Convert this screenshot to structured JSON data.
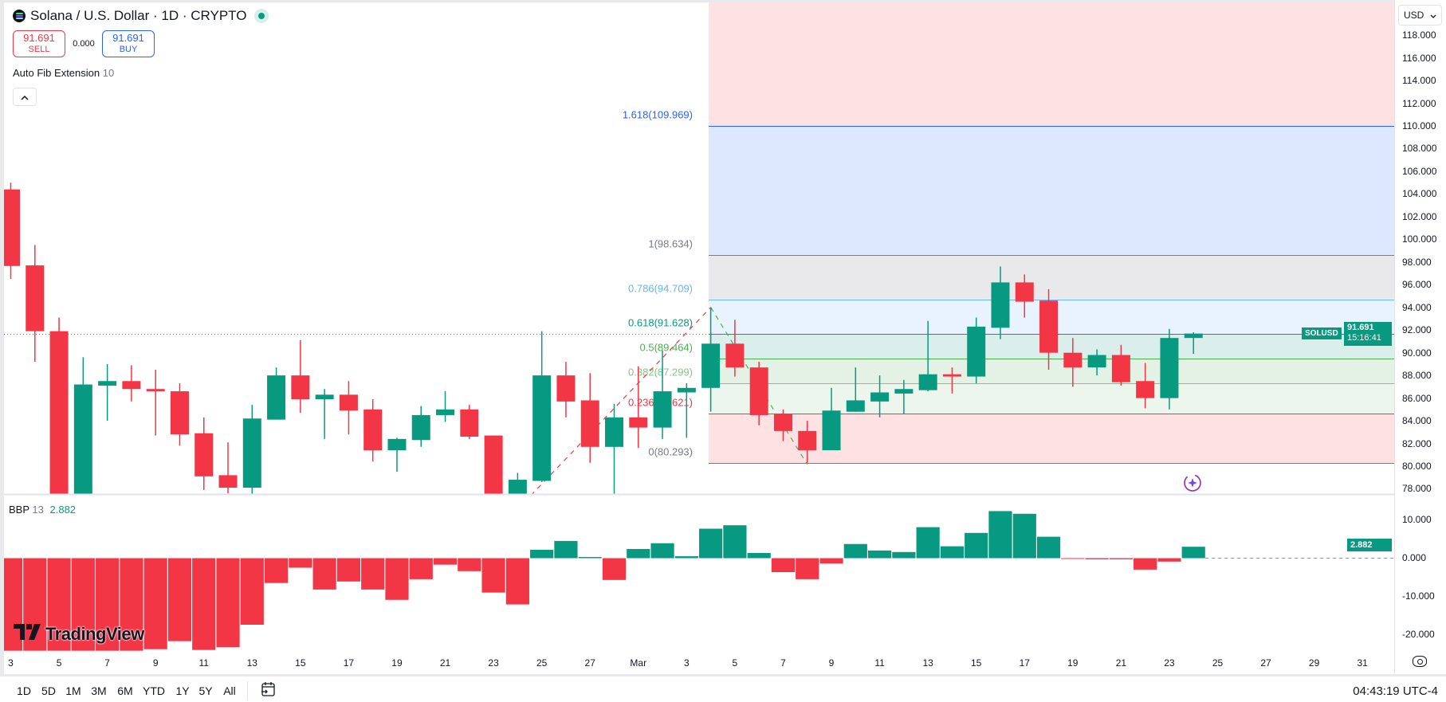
{
  "header": {
    "symbol_title": "Solana / U.S. Dollar · 1D · CRYPTO",
    "sell_price": "91.691",
    "sell_label": "SELL",
    "spread": "0.000",
    "buy_price": "91.691",
    "buy_label": "BUY",
    "indicator_name": "Auto Fib Extension",
    "indicator_param": "10",
    "collapse_icon": "^"
  },
  "currency_selector": {
    "label": "USD",
    "icon": "chevron-down-icon"
  },
  "price_tag": {
    "symbol": "SOLUSD",
    "price": "91.691",
    "countdown": "15:16:41"
  },
  "bbp": {
    "name": "BBP",
    "param": "13",
    "value": "2.882"
  },
  "price_axis": {
    "ticks": [
      "118.000",
      "116.000",
      "114.000",
      "112.000",
      "110.000",
      "108.000",
      "106.000",
      "104.000",
      "102.000",
      "100.000",
      "98.000",
      "96.000",
      "94.000",
      "92.000",
      "90.000",
      "88.000",
      "86.000",
      "84.000",
      "82.000",
      "80.000",
      "78.000"
    ]
  },
  "bbp_axis": {
    "ticks": [
      "10.000",
      "0.000",
      "-10.000",
      "-20.000"
    ]
  },
  "time_axis": {
    "labels": [
      {
        "label": "3",
        "date": "Feb 3"
      },
      {
        "label": "5",
        "date": "Feb 5"
      },
      {
        "label": "7",
        "date": "Feb 7"
      },
      {
        "label": "9",
        "date": "Feb 9"
      },
      {
        "label": "11",
        "date": "Feb 11"
      },
      {
        "label": "13",
        "date": "Feb 13"
      },
      {
        "label": "15",
        "date": "Feb 15"
      },
      {
        "label": "17",
        "date": "Feb 17"
      },
      {
        "label": "19",
        "date": "Feb 19"
      },
      {
        "label": "21",
        "date": "Feb 21"
      },
      {
        "label": "23",
        "date": "Feb 23"
      },
      {
        "label": "25",
        "date": "Feb 25"
      },
      {
        "label": "27",
        "date": "Feb 27"
      },
      {
        "label": "Mar",
        "date": "Mar 1"
      },
      {
        "label": "3",
        "date": "Mar 3"
      },
      {
        "label": "5",
        "date": "Mar 5"
      },
      {
        "label": "7",
        "date": "Mar 7"
      },
      {
        "label": "9",
        "date": "Mar 9"
      },
      {
        "label": "11",
        "date": "Mar 11"
      },
      {
        "label": "13",
        "date": "Mar 13"
      },
      {
        "label": "15",
        "date": "Mar 15"
      },
      {
        "label": "17",
        "date": "Mar 17"
      },
      {
        "label": "19",
        "date": "Mar 19"
      },
      {
        "label": "21",
        "date": "Mar 21"
      },
      {
        "label": "23",
        "date": "Mar 23"
      },
      {
        "label": "25",
        "date": "Mar 25"
      },
      {
        "label": "27",
        "date": "Mar 27"
      },
      {
        "label": "29",
        "date": "Mar 29"
      },
      {
        "label": "31",
        "date": "Mar 31"
      }
    ]
  },
  "bottom_bar": {
    "ranges": [
      "1D",
      "5D",
      "1M",
      "3M",
      "6M",
      "YTD",
      "1Y",
      "5Y",
      "All"
    ],
    "clock": "04:43:19 UTC-4"
  },
  "logo": "TradingView",
  "colors": {
    "up": "#089981",
    "down": "#f23645",
    "accent": "#2962ff"
  },
  "fib": {
    "levels": [
      {
        "ratio": "1.618",
        "price": "109.969",
        "color": "#2962ff"
      },
      {
        "ratio": "1",
        "price": "98.634",
        "color": "#787b86"
      },
      {
        "ratio": "0.786",
        "price": "94.709",
        "color": "#64b5f6"
      },
      {
        "ratio": "0.618",
        "price": "91.628",
        "color": "#089981"
      },
      {
        "ratio": "0.5",
        "price": "89.464",
        "color": "#4caf50"
      },
      {
        "ratio": "0.382",
        "price": "87.299",
        "color": "#81c784"
      },
      {
        "ratio": "0.236",
        "price": "84.621",
        "color": "#f23645"
      },
      {
        "ratio": "0",
        "price": "80.293",
        "color": "#787b86"
      }
    ],
    "zone_fills": [
      "#fde1e3",
      "#dde7fd",
      "#e9e9ec",
      "#e8f3fd",
      "#daefeb",
      "#e3f2e4",
      "#ecf6ec",
      "#fde1e3"
    ],
    "anchor_date": "Mar 4"
  },
  "chart_data": [
    {
      "type": "candlestick",
      "ylim": [
        77.7,
        121.0
      ],
      "current_price": 91.691,
      "dates": [
        "Feb 3",
        "Feb 4",
        "Feb 5",
        "Feb 6",
        "Feb 7",
        "Feb 8",
        "Feb 9",
        "Feb 10",
        "Feb 11",
        "Feb 12",
        "Feb 13",
        "Feb 14",
        "Feb 15",
        "Feb 16",
        "Feb 17",
        "Feb 18",
        "Feb 19",
        "Feb 20",
        "Feb 21",
        "Feb 22",
        "Feb 23",
        "Feb 24",
        "Feb 25",
        "Feb 26",
        "Feb 27",
        "Feb 28",
        "Mar 1",
        "Mar 2",
        "Mar 3",
        "Mar 4",
        "Mar 5",
        "Mar 6",
        "Mar 7",
        "Mar 8",
        "Mar 9",
        "Mar 10",
        "Mar 11",
        "Mar 12",
        "Mar 13",
        "Mar 14",
        "Mar 15",
        "Mar 16",
        "Mar 17",
        "Mar 18",
        "Mar 19",
        "Mar 20",
        "Mar 21",
        "Mar 22",
        "Mar 23",
        "Mar 24"
      ],
      "ohlc": [
        [
          104.4,
          105.0,
          96.5,
          97.65
        ],
        [
          97.7,
          99.5,
          89.2,
          91.9
        ],
        [
          91.9,
          93.1,
          75.0,
          76.0
        ],
        [
          76.3,
          89.6,
          75.5,
          87.2
        ],
        [
          87.1,
          89.0,
          84.0,
          87.5
        ],
        [
          87.5,
          88.9,
          85.7,
          86.8
        ],
        [
          86.8,
          88.5,
          82.7,
          86.6
        ],
        [
          86.6,
          87.3,
          81.8,
          82.8
        ],
        [
          82.9,
          84.3,
          77.9,
          79.1
        ],
        [
          79.2,
          82.1,
          77.6,
          78.1
        ],
        [
          78.1,
          85.4,
          77.5,
          84.2
        ],
        [
          84.1,
          88.7,
          84.1,
          88.0
        ],
        [
          88.0,
          91.1,
          84.7,
          85.9
        ],
        [
          85.9,
          86.8,
          82.4,
          86.3
        ],
        [
          86.3,
          87.5,
          82.8,
          84.9
        ],
        [
          85.0,
          85.9,
          80.4,
          81.4
        ],
        [
          81.4,
          82.5,
          79.5,
          82.4
        ],
        [
          82.3,
          85.3,
          81.7,
          84.5
        ],
        [
          84.5,
          86.6,
          83.9,
          85.0
        ],
        [
          85.0,
          85.4,
          82.4,
          82.6
        ],
        [
          82.7,
          82.7,
          76.0,
          77.0
        ],
        [
          77.0,
          79.4,
          76.0,
          78.8
        ],
        [
          78.7,
          91.9,
          78.6,
          88.0
        ],
        [
          88.0,
          89.2,
          84.3,
          85.7
        ],
        [
          85.8,
          88.2,
          80.3,
          81.7
        ],
        [
          81.7,
          85.5,
          77.5,
          84.3
        ],
        [
          84.3,
          88.8,
          81.6,
          83.4
        ],
        [
          83.4,
          90.2,
          82.4,
          86.6
        ],
        [
          86.5,
          87.3,
          82.5,
          86.9
        ],
        [
          86.9,
          94.0,
          84.8,
          90.8
        ],
        [
          90.8,
          92.9,
          87.9,
          88.7
        ],
        [
          88.7,
          89.2,
          83.6,
          84.5
        ],
        [
          84.6,
          85.0,
          82.2,
          83.1
        ],
        [
          83.1,
          84.0,
          80.29,
          81.4
        ],
        [
          81.4,
          86.9,
          81.4,
          84.9
        ],
        [
          84.8,
          88.7,
          84.8,
          85.8
        ],
        [
          85.7,
          88.0,
          84.3,
          86.5
        ],
        [
          86.4,
          87.6,
          84.6,
          86.8
        ],
        [
          86.7,
          92.8,
          86.6,
          88.1
        ],
        [
          88.1,
          88.7,
          86.4,
          87.9
        ],
        [
          87.9,
          93.1,
          87.3,
          92.3
        ],
        [
          92.2,
          97.6,
          91.2,
          96.2
        ],
        [
          96.2,
          96.9,
          93.1,
          94.5
        ],
        [
          94.6,
          95.6,
          88.5,
          90.0
        ],
        [
          90.0,
          91.3,
          87.0,
          88.7
        ],
        [
          88.7,
          90.3,
          88.0,
          89.8
        ],
        [
          89.8,
          90.7,
          87.1,
          87.4
        ],
        [
          87.5,
          89.1,
          85.1,
          86.0
        ],
        [
          86.0,
          92.1,
          85.0,
          91.3
        ],
        [
          91.3,
          91.8,
          89.9,
          91.691
        ]
      ]
    },
    {
      "type": "bar",
      "name": "BBP 13",
      "ylim": [
        -24.3,
        16.5
      ],
      "values": [
        -24.3,
        -24.3,
        -24.3,
        -24.3,
        -24.3,
        -24.3,
        -23.9,
        -21.8,
        -24.1,
        -23.4,
        -17.5,
        -6.6,
        -2.6,
        -8.3,
        -6.2,
        -8.3,
        -11.0,
        -5.6,
        -1.8,
        -3.5,
        -9.1,
        -12.2,
        2.1,
        4.4,
        0.2,
        -5.8,
        2.3,
        3.8,
        0.4,
        7.6,
        8.5,
        1.25,
        -3.75,
        -5.6,
        -1.5,
        3.6,
        1.9,
        1.5,
        8.0,
        3.0,
        6.5,
        12.2,
        11.5,
        5.5,
        -0.15,
        -0.4,
        -0.4,
        -3.1,
        -1.0,
        2.882
      ]
    }
  ]
}
